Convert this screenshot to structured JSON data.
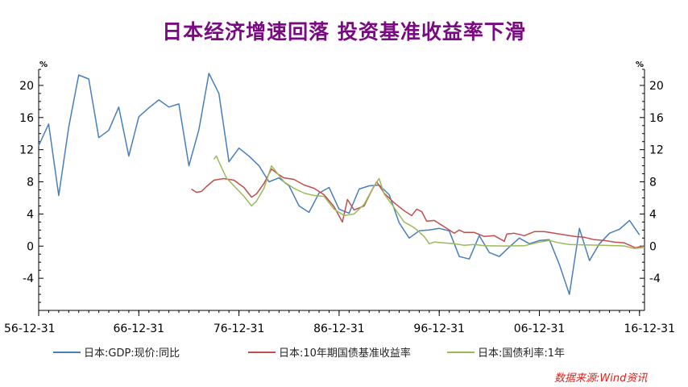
{
  "title": "日本经济增速回落 投资基准收益率下滑",
  "source": "数据来源:Wind资讯",
  "legend": [
    {
      "label": "日本:GDP:现价:同比",
      "color": "#4a7ebb"
    },
    {
      "label": "日本:10年期国债基准收益率",
      "color": "#c0504d"
    },
    {
      "label": "日本:国债利率:1年",
      "color": "#9bbb59"
    }
  ],
  "chart_data": {
    "type": "line",
    "title": "日本经济增速回落 投资基准收益率下滑",
    "left_unit": "%",
    "right_unit": "%",
    "ylim": [
      -8,
      22
    ],
    "y_ticks": [
      20,
      16,
      12,
      8,
      4,
      0,
      -4
    ],
    "x_range": [
      "1956-12-31",
      "2017-06-30"
    ],
    "x_ticks": [
      "56-12-31",
      "66-12-31",
      "76-12-31",
      "86-12-31",
      "96-12-31",
      "06-12-31",
      "16-12-31"
    ],
    "grid": false,
    "series": [
      {
        "name": "日本:GDP:现价:同比",
        "color": "#4a7ebb",
        "points": [
          [
            "1956-12-31",
            12.5
          ],
          [
            "1957-12-31",
            15.2
          ],
          [
            "1958-12-31",
            6.3
          ],
          [
            "1959-12-31",
            14.8
          ],
          [
            "1960-12-31",
            21.3
          ],
          [
            "1961-12-31",
            20.8
          ],
          [
            "1962-12-31",
            13.5
          ],
          [
            "1963-12-31",
            14.4
          ],
          [
            "1964-12-31",
            17.3
          ],
          [
            "1965-12-31",
            11.2
          ],
          [
            "1966-12-31",
            16.1
          ],
          [
            "1967-12-31",
            17.2
          ],
          [
            "1968-12-31",
            18.2
          ],
          [
            "1969-12-31",
            17.3
          ],
          [
            "1970-12-31",
            17.7
          ],
          [
            "1971-12-31",
            10.0
          ],
          [
            "1972-12-31",
            14.5
          ],
          [
            "1973-12-31",
            21.5
          ],
          [
            "1974-12-31",
            19.0
          ],
          [
            "1975-12-31",
            10.5
          ],
          [
            "1976-12-31",
            12.2
          ],
          [
            "1977-12-31",
            11.2
          ],
          [
            "1978-12-31",
            10.0
          ],
          [
            "1979-12-31",
            8.0
          ],
          [
            "1980-12-31",
            8.5
          ],
          [
            "1981-12-31",
            7.5
          ],
          [
            "1982-12-31",
            5.0
          ],
          [
            "1983-12-31",
            4.2
          ],
          [
            "1984-12-31",
            6.6
          ],
          [
            "1985-12-31",
            7.3
          ],
          [
            "1986-12-31",
            4.6
          ],
          [
            "1987-12-31",
            4.1
          ],
          [
            "1988-12-31",
            7.1
          ],
          [
            "1989-12-31",
            7.5
          ],
          [
            "1990-12-31",
            7.6
          ],
          [
            "1991-12-31",
            6.4
          ],
          [
            "1992-12-31",
            2.9
          ],
          [
            "1993-12-31",
            1.0
          ],
          [
            "1994-12-31",
            1.9
          ],
          [
            "1995-12-31",
            2.0
          ],
          [
            "1996-12-31",
            2.2
          ],
          [
            "1997-12-31",
            1.9
          ],
          [
            "1998-12-31",
            -1.3
          ],
          [
            "1999-12-31",
            -1.6
          ],
          [
            "2000-12-31",
            1.3
          ],
          [
            "2001-12-31",
            -0.8
          ],
          [
            "2002-12-31",
            -1.3
          ],
          [
            "2003-12-31",
            -0.1
          ],
          [
            "2004-12-31",
            1.0
          ],
          [
            "2005-12-31",
            0.3
          ],
          [
            "2006-12-31",
            0.7
          ],
          [
            "2007-12-31",
            0.8
          ],
          [
            "2008-12-31",
            -2.3
          ],
          [
            "2009-12-31",
            -6.0
          ],
          [
            "2010-12-31",
            2.2
          ],
          [
            "2011-12-31",
            -1.8
          ],
          [
            "2012-12-31",
            0.3
          ],
          [
            "2013-12-31",
            1.6
          ],
          [
            "2014-12-31",
            2.1
          ],
          [
            "2015-12-31",
            3.2
          ],
          [
            "2016-12-31",
            1.4
          ]
        ]
      },
      {
        "name": "日本:10年期国债基准收益率",
        "color": "#c0504d",
        "points": [
          [
            "1972-03-31",
            7.1
          ],
          [
            "1972-09-30",
            6.7
          ],
          [
            "1973-03-31",
            6.8
          ],
          [
            "1973-09-30",
            7.4
          ],
          [
            "1974-06-30",
            8.2
          ],
          [
            "1975-06-30",
            8.4
          ],
          [
            "1976-06-30",
            8.2
          ],
          [
            "1977-06-30",
            7.3
          ],
          [
            "1978-03-31",
            6.1
          ],
          [
            "1978-09-30",
            6.5
          ],
          [
            "1979-06-30",
            7.8
          ],
          [
            "1980-03-31",
            9.6
          ],
          [
            "1980-09-30",
            9.1
          ],
          [
            "1981-06-30",
            8.5
          ],
          [
            "1982-06-30",
            8.3
          ],
          [
            "1983-06-30",
            7.6
          ],
          [
            "1984-06-30",
            7.2
          ],
          [
            "1985-06-30",
            6.4
          ],
          [
            "1986-06-30",
            4.9
          ],
          [
            "1987-04-30",
            3.0
          ],
          [
            "1987-10-31",
            5.8
          ],
          [
            "1988-06-30",
            4.5
          ],
          [
            "1989-06-30",
            5.0
          ],
          [
            "1990-03-31",
            6.9
          ],
          [
            "1990-09-30",
            8.0
          ],
          [
            "1991-06-30",
            6.6
          ],
          [
            "1992-06-30",
            5.4
          ],
          [
            "1993-06-30",
            4.4
          ],
          [
            "1994-03-31",
            3.8
          ],
          [
            "1994-09-30",
            4.6
          ],
          [
            "1995-03-31",
            4.3
          ],
          [
            "1995-09-30",
            3.1
          ],
          [
            "1996-06-30",
            3.2
          ],
          [
            "1997-06-30",
            2.4
          ],
          [
            "1998-06-30",
            1.6
          ],
          [
            "1998-12-31",
            2.0
          ],
          [
            "1999-06-30",
            1.7
          ],
          [
            "2000-06-30",
            1.7
          ],
          [
            "2001-06-30",
            1.2
          ],
          [
            "2002-06-30",
            1.3
          ],
          [
            "2003-06-30",
            0.6
          ],
          [
            "2003-09-30",
            1.5
          ],
          [
            "2004-06-30",
            1.6
          ],
          [
            "2005-06-30",
            1.3
          ],
          [
            "2006-06-30",
            1.8
          ],
          [
            "2007-06-30",
            1.8
          ],
          [
            "2008-06-30",
            1.6
          ],
          [
            "2009-06-30",
            1.4
          ],
          [
            "2010-06-30",
            1.2
          ],
          [
            "2011-06-30",
            1.1
          ],
          [
            "2012-06-30",
            0.8
          ],
          [
            "2013-06-30",
            0.7
          ],
          [
            "2014-06-30",
            0.5
          ],
          [
            "2015-06-30",
            0.4
          ],
          [
            "2016-07-31",
            -0.2
          ],
          [
            "2017-06-30",
            0.05
          ]
        ]
      },
      {
        "name": "日本:国债利率:1年",
        "color": "#9bbb59",
        "points": [
          [
            "1974-06-30",
            10.8
          ],
          [
            "1974-09-30",
            11.2
          ],
          [
            "1975-03-31",
            9.8
          ],
          [
            "1975-09-30",
            8.5
          ],
          [
            "1976-06-30",
            7.5
          ],
          [
            "1977-06-30",
            6.2
          ],
          [
            "1978-03-31",
            5.0
          ],
          [
            "1978-09-30",
            5.6
          ],
          [
            "1979-06-30",
            7.2
          ],
          [
            "1980-03-31",
            10.0
          ],
          [
            "1980-09-30",
            9.2
          ],
          [
            "1981-06-30",
            8.0
          ],
          [
            "1982-06-30",
            7.2
          ],
          [
            "1983-06-30",
            6.6
          ],
          [
            "1984-06-30",
            6.3
          ],
          [
            "1985-06-30",
            6.2
          ],
          [
            "1986-06-30",
            4.6
          ],
          [
            "1987-06-30",
            3.8
          ],
          [
            "1988-06-30",
            4.0
          ],
          [
            "1989-06-30",
            5.2
          ],
          [
            "1990-06-30",
            7.5
          ],
          [
            "1990-12-31",
            8.4
          ],
          [
            "1991-06-30",
            6.5
          ],
          [
            "1992-06-30",
            4.8
          ],
          [
            "1993-06-30",
            3.0
          ],
          [
            "1994-06-30",
            2.3
          ],
          [
            "1995-06-30",
            1.2
          ],
          [
            "1995-12-31",
            0.3
          ],
          [
            "1996-06-30",
            0.5
          ],
          [
            "1997-06-30",
            0.4
          ],
          [
            "1998-06-30",
            0.3
          ],
          [
            "1999-06-30",
            0.1
          ],
          [
            "2000-06-30",
            0.2
          ],
          [
            "2001-06-30",
            0.05
          ],
          [
            "2003-06-30",
            0.02
          ],
          [
            "2005-06-30",
            0.05
          ],
          [
            "2006-12-31",
            0.5
          ],
          [
            "2007-12-31",
            0.7
          ],
          [
            "2008-12-31",
            0.4
          ],
          [
            "2009-12-31",
            0.2
          ],
          [
            "2011-06-30",
            0.15
          ],
          [
            "2013-06-30",
            0.1
          ],
          [
            "2015-06-30",
            0.02
          ],
          [
            "2016-06-30",
            -0.3
          ],
          [
            "2017-06-30",
            -0.15
          ]
        ]
      }
    ]
  }
}
